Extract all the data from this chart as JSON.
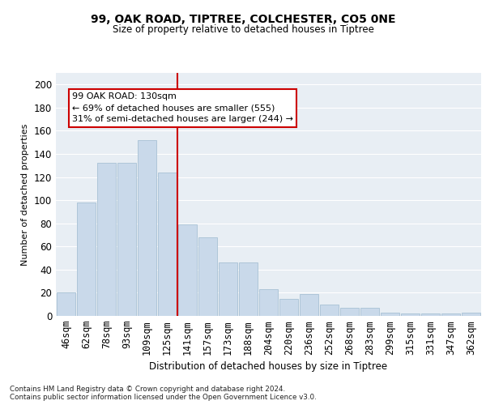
{
  "title1": "99, OAK ROAD, TIPTREE, COLCHESTER, CO5 0NE",
  "title2": "Size of property relative to detached houses in Tiptree",
  "xlabel": "Distribution of detached houses by size in Tiptree",
  "ylabel": "Number of detached properties",
  "categories": [
    "46sqm",
    "62sqm",
    "78sqm",
    "93sqm",
    "109sqm",
    "125sqm",
    "141sqm",
    "157sqm",
    "173sqm",
    "188sqm",
    "204sqm",
    "220sqm",
    "236sqm",
    "252sqm",
    "268sqm",
    "283sqm",
    "299sqm",
    "315sqm",
    "331sqm",
    "347sqm",
    "362sqm"
  ],
  "values": [
    20,
    98,
    132,
    132,
    152,
    124,
    79,
    68,
    46,
    46,
    23,
    15,
    19,
    10,
    7,
    7,
    3,
    2,
    2,
    2,
    3
  ],
  "bar_color": "#c9d9ea",
  "bar_edgecolor": "#aec6d8",
  "vline_x_index": 6,
  "vline_color": "#cc0000",
  "annotation_text": "99 OAK ROAD: 130sqm\n← 69% of detached houses are smaller (555)\n31% of semi-detached houses are larger (244) →",
  "annotation_box_facecolor": "#ffffff",
  "annotation_box_edgecolor": "#cc0000",
  "ylim": [
    0,
    210
  ],
  "yticks": [
    0,
    20,
    40,
    60,
    80,
    100,
    120,
    140,
    160,
    180,
    200
  ],
  "bg_color": "#e8eef4",
  "grid_color": "#ffffff",
  "footnote1": "Contains HM Land Registry data © Crown copyright and database right 2024.",
  "footnote2": "Contains public sector information licensed under the Open Government Licence v3.0."
}
